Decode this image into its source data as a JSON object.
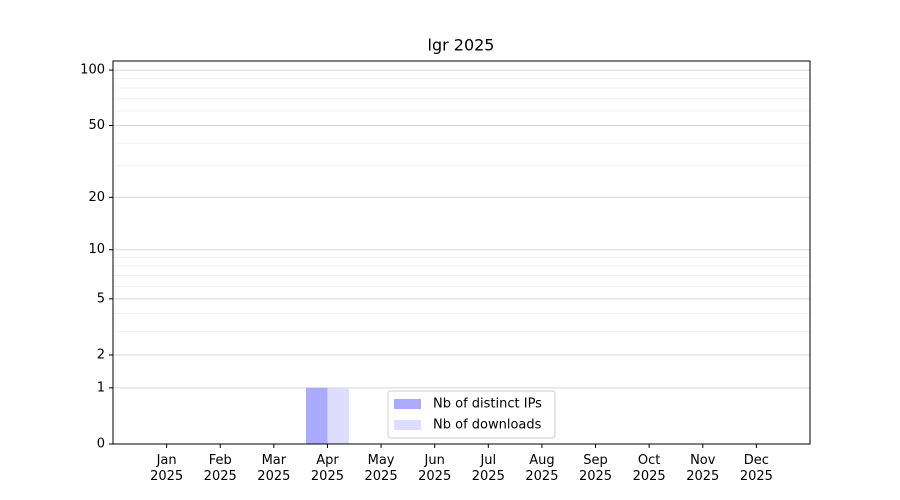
{
  "chart_data": {
    "type": "bar",
    "title": "lgr 2025",
    "categories": [
      "Jan\n2025",
      "Feb\n2025",
      "Mar\n2025",
      "Apr\n2025",
      "May\n2025",
      "Jun\n2025",
      "Jul\n2025",
      "Aug\n2025",
      "Sep\n2025",
      "Oct\n2025",
      "Nov\n2025",
      "Dec\n2025"
    ],
    "series": [
      {
        "name": "Nb of distinct IPs",
        "color": "#aaaaff",
        "values": [
          0,
          0,
          0,
          1,
          0,
          0,
          0,
          0,
          0,
          0,
          0,
          0
        ]
      },
      {
        "name": "Nb of downloads",
        "color": "#ddddff",
        "values": [
          0,
          0,
          0,
          1,
          0,
          0,
          0,
          0,
          0,
          0,
          0,
          0
        ]
      }
    ],
    "yscale": "log1p",
    "ylim": [
      0,
      112
    ],
    "yticks": [
      0,
      1,
      2,
      5,
      10,
      20,
      50,
      100
    ],
    "minor_yticks": [
      3,
      4,
      6,
      7,
      8,
      9,
      30,
      40,
      60,
      70,
      80,
      90
    ],
    "grid": true,
    "legend_loc": "lower center"
  }
}
